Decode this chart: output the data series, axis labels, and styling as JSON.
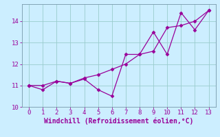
{
  "xlabel": "Windchill (Refroidissement éolien,°C)",
  "ylabel": "",
  "background_color": "#cceeff",
  "line_color": "#990099",
  "grid_color": "#99cccc",
  "x_line1": [
    0,
    1,
    2,
    3,
    4,
    5,
    6,
    7,
    8,
    9,
    10,
    11,
    12,
    13
  ],
  "y_line1": [
    11.0,
    10.8,
    11.2,
    11.1,
    11.3,
    10.8,
    10.5,
    12.45,
    12.45,
    13.5,
    12.45,
    14.4,
    13.6,
    14.5
  ],
  "x_line2": [
    0,
    1,
    2,
    3,
    4,
    5,
    6,
    7,
    8,
    9,
    10,
    11,
    12,
    13
  ],
  "y_line2": [
    11.0,
    11.0,
    11.2,
    11.1,
    11.35,
    11.5,
    11.75,
    12.0,
    12.45,
    12.6,
    13.7,
    13.8,
    14.0,
    14.5
  ],
  "xlim": [
    -0.5,
    13.5
  ],
  "ylim": [
    10.0,
    14.8
  ],
  "xticks": [
    0,
    1,
    2,
    3,
    4,
    5,
    6,
    7,
    8,
    9,
    10,
    11,
    12,
    13
  ],
  "yticks": [
    10,
    11,
    12,
    13,
    14
  ],
  "tick_fontsize": 6.5,
  "xlabel_fontsize": 7,
  "marker": "D",
  "markersize": 2.5,
  "linewidth": 0.9
}
